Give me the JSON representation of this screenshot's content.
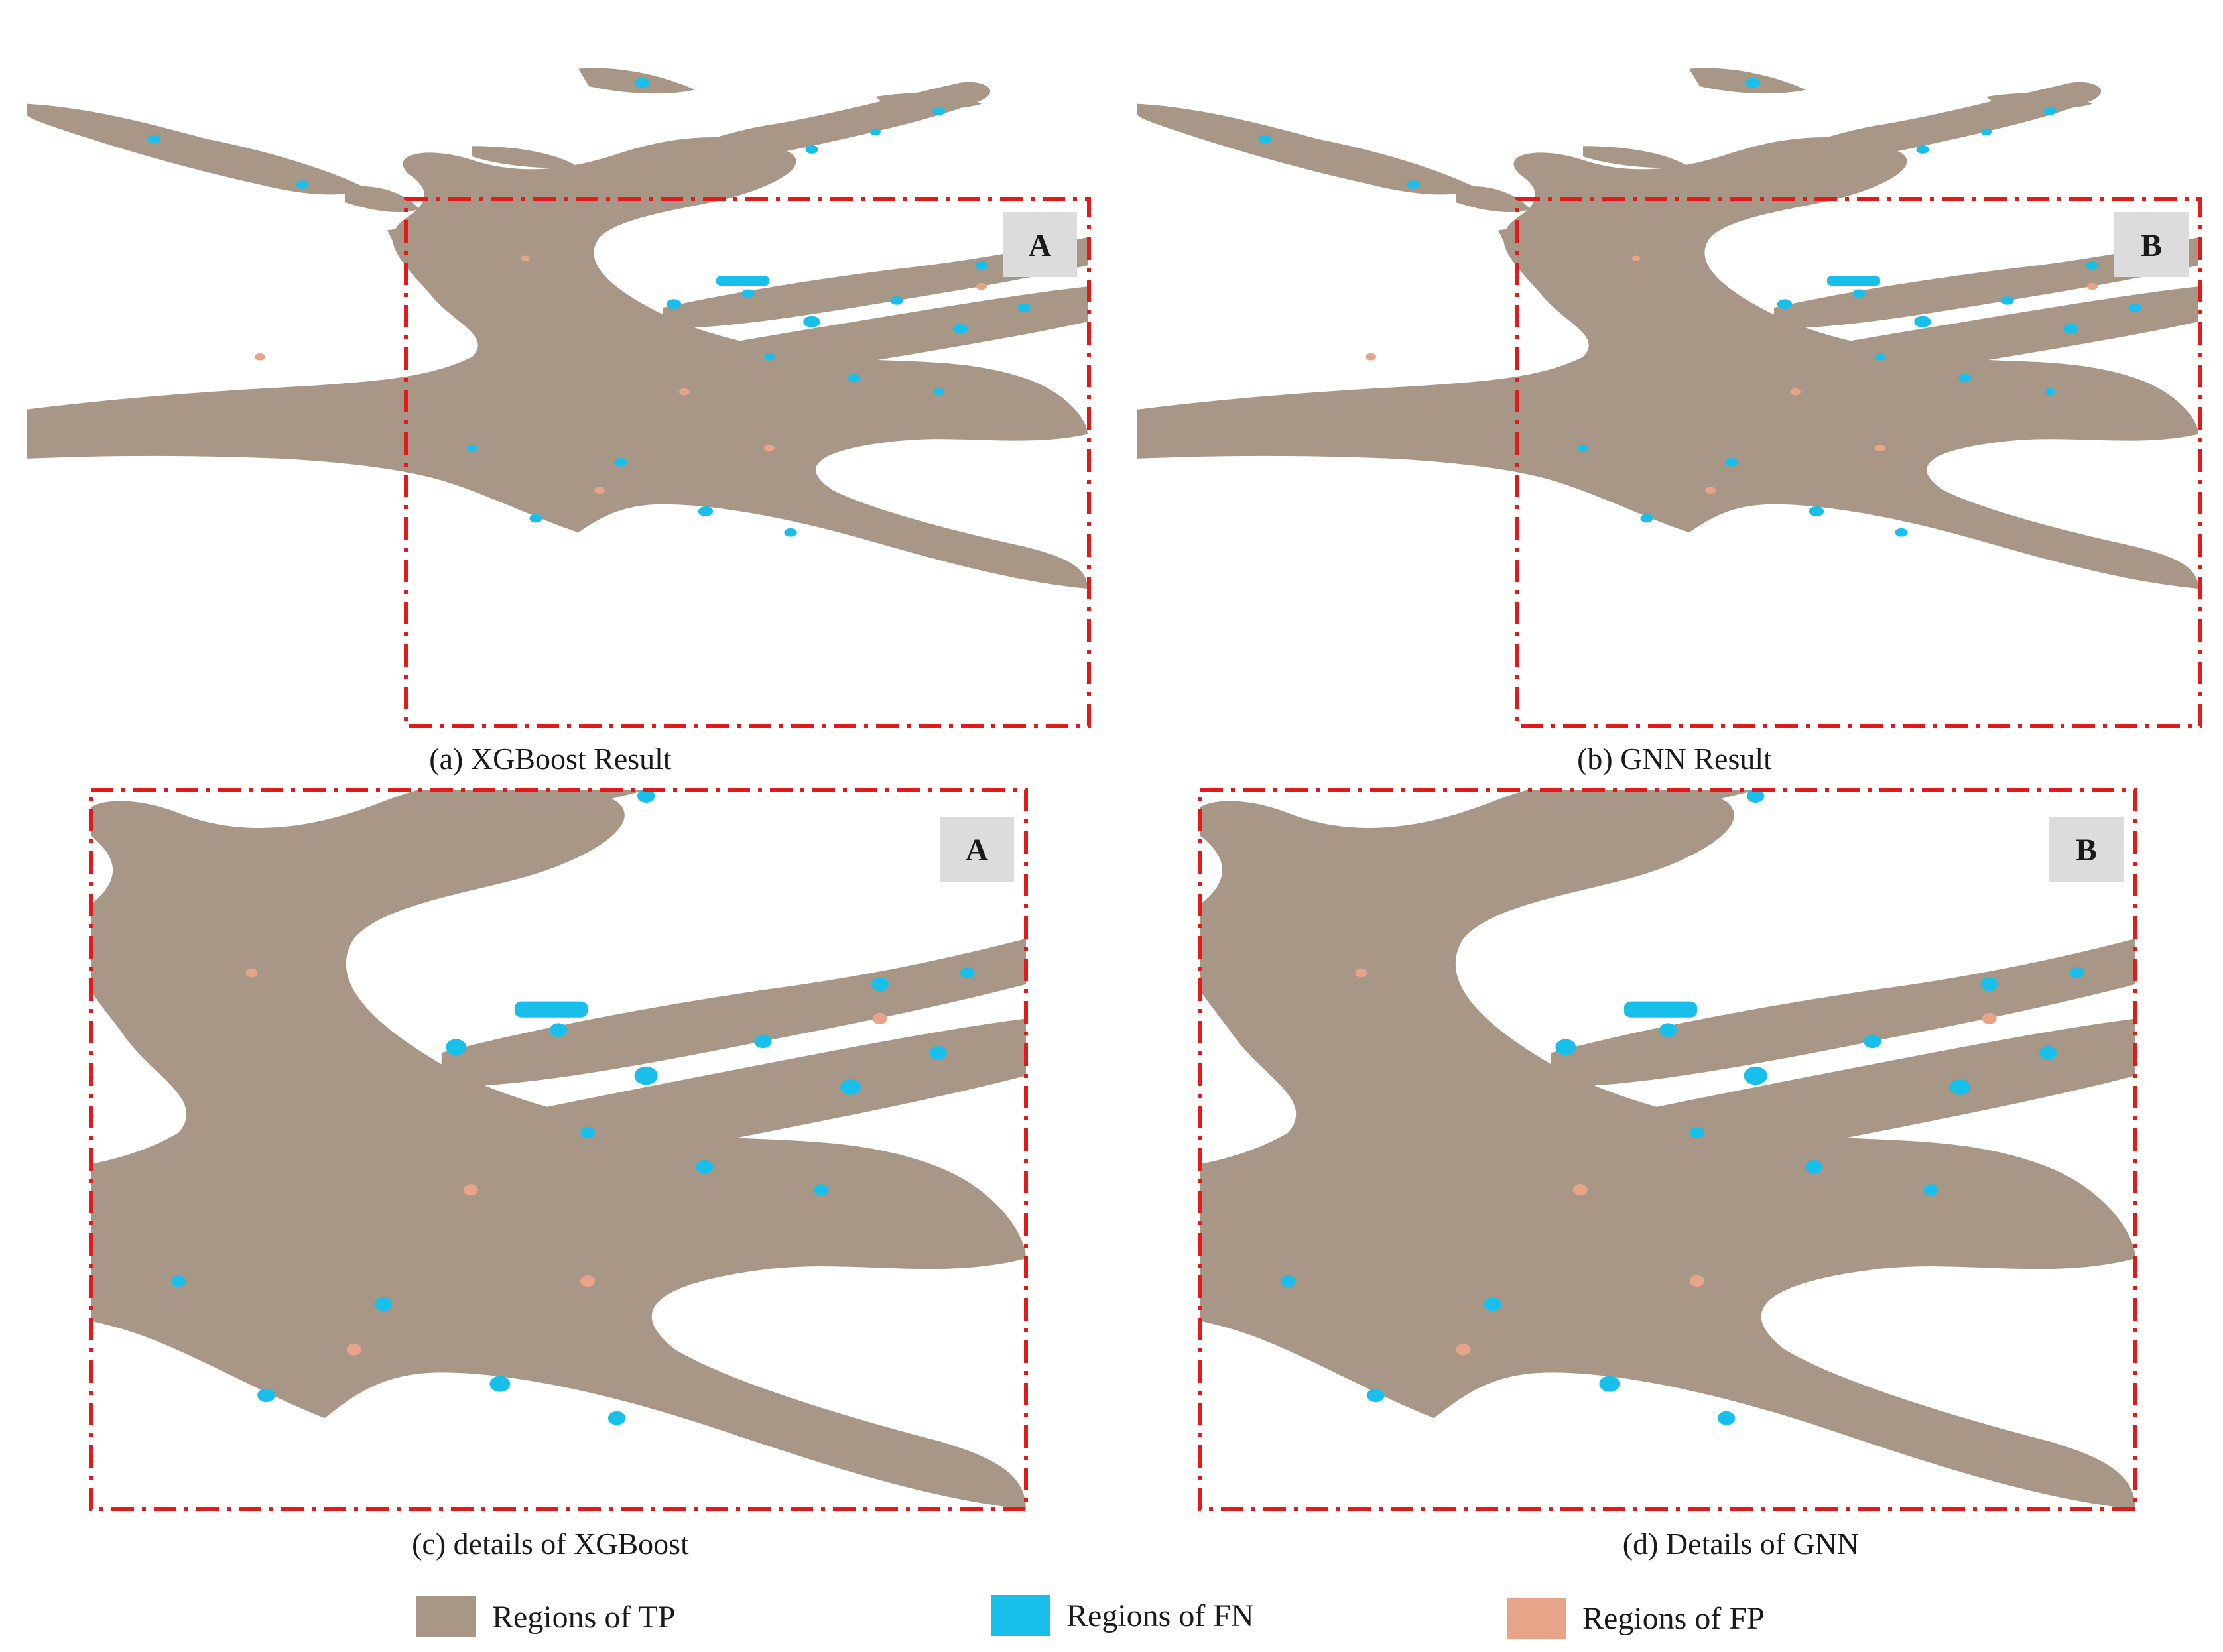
{
  "colors": {
    "tp": "#A89786",
    "fn": "#18BFEA",
    "fp": "#E8A488",
    "frame": "#E31A1C",
    "tag_bg": "#DCDCDC"
  },
  "panels": [
    {
      "id": "a",
      "caption": "(a) XGBoost Result",
      "tag": "A"
    },
    {
      "id": "b",
      "caption": "(b) GNN Result",
      "tag": "B"
    },
    {
      "id": "c",
      "caption": "(c) details of XGBoost",
      "tag": "A"
    },
    {
      "id": "d",
      "caption": "(d) Details of GNN",
      "tag": "B"
    }
  ],
  "legend": [
    {
      "label": "Regions of TP",
      "color": "#A89786"
    },
    {
      "label": "Regions of FN",
      "color": "#18BFEA"
    },
    {
      "label": "Regions of FP",
      "color": "#E8A488"
    }
  ]
}
